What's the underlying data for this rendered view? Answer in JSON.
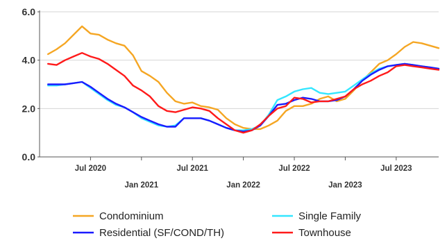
{
  "chart_data": {
    "type": "line",
    "title": "",
    "xlabel": "",
    "ylabel": "",
    "ylim": [
      0,
      6
    ],
    "yticks": [
      "0.0",
      "2.0",
      "4.0",
      "6.0"
    ],
    "x_range": [
      "2020-01",
      "2023-12"
    ],
    "xticks": [
      {
        "date": "2020-07",
        "label": "Jul 2020",
        "row": 1
      },
      {
        "date": "2021-01",
        "label": "Jan 2021",
        "row": 2
      },
      {
        "date": "2021-07",
        "label": "Jul 2021",
        "row": 1
      },
      {
        "date": "2022-01",
        "label": "Jan 2022",
        "row": 2
      },
      {
        "date": "2022-07",
        "label": "Jul 2022",
        "row": 1
      },
      {
        "date": "2023-01",
        "label": "Jan 2023",
        "row": 2
      },
      {
        "date": "2023-07",
        "label": "Jul 2023",
        "row": 1
      }
    ],
    "grid": "horizontal",
    "legend_position": "bottom",
    "x": [
      "2020-02",
      "2020-03",
      "2020-04",
      "2020-05",
      "2020-06",
      "2020-07",
      "2020-08",
      "2020-09",
      "2020-10",
      "2020-11",
      "2020-12",
      "2021-01",
      "2021-02",
      "2021-03",
      "2021-04",
      "2021-05",
      "2021-06",
      "2021-07",
      "2021-08",
      "2021-09",
      "2021-10",
      "2021-11",
      "2021-12",
      "2022-01",
      "2022-02",
      "2022-03",
      "2022-04",
      "2022-05",
      "2022-06",
      "2022-07",
      "2022-08",
      "2022-09",
      "2022-10",
      "2022-11",
      "2022-12",
      "2023-01",
      "2023-02",
      "2023-03",
      "2023-04",
      "2023-05",
      "2023-06",
      "2023-07",
      "2023-08",
      "2023-09",
      "2023-10",
      "2023-11",
      "2023-12"
    ],
    "series": [
      {
        "name": "Condominium",
        "color": "#f5a623",
        "values": [
          4.25,
          4.45,
          4.7,
          5.05,
          5.4,
          5.1,
          5.05,
          4.85,
          4.7,
          4.6,
          4.2,
          3.55,
          3.35,
          3.1,
          2.65,
          2.3,
          2.2,
          2.25,
          2.1,
          2.05,
          1.95,
          1.6,
          1.35,
          1.2,
          1.15,
          1.15,
          1.3,
          1.5,
          1.9,
          2.1,
          2.1,
          2.2,
          2.4,
          2.5,
          2.3,
          2.4,
          2.75,
          3.15,
          3.5,
          3.85,
          4.0,
          4.25,
          4.55,
          4.75,
          4.7,
          4.6,
          4.5
        ]
      },
      {
        "name": "Single Family",
        "color": "#33e6ff",
        "values": [
          2.95,
          2.95,
          3.0,
          3.05,
          3.1,
          2.85,
          2.6,
          2.35,
          2.15,
          2.05,
          1.85,
          1.6,
          1.45,
          1.3,
          1.25,
          1.3,
          1.6,
          1.6,
          1.6,
          1.5,
          1.35,
          1.2,
          1.1,
          1.1,
          1.15,
          1.3,
          1.75,
          2.35,
          2.5,
          2.7,
          2.8,
          2.85,
          2.65,
          2.6,
          2.65,
          2.7,
          2.95,
          3.2,
          3.45,
          3.65,
          3.75,
          3.8,
          3.85,
          3.8,
          3.75,
          3.7,
          3.65
        ]
      },
      {
        "name": "Residential (SF/COND/TH)",
        "color": "#1a1aff",
        "values": [
          3.0,
          3.0,
          3.0,
          3.05,
          3.1,
          2.9,
          2.65,
          2.4,
          2.2,
          2.05,
          1.85,
          1.65,
          1.5,
          1.35,
          1.25,
          1.25,
          1.6,
          1.6,
          1.6,
          1.5,
          1.35,
          1.2,
          1.1,
          1.05,
          1.1,
          1.3,
          1.7,
          2.15,
          2.2,
          2.35,
          2.45,
          2.4,
          2.3,
          2.3,
          2.35,
          2.5,
          2.8,
          3.15,
          3.4,
          3.6,
          3.75,
          3.8,
          3.85,
          3.8,
          3.75,
          3.7,
          3.65
        ]
      },
      {
        "name": "Townhouse",
        "color": "#ff1a1a",
        "values": [
          3.85,
          3.8,
          4.0,
          4.15,
          4.3,
          4.15,
          4.05,
          3.85,
          3.6,
          3.35,
          2.95,
          2.75,
          2.5,
          2.1,
          1.9,
          1.85,
          1.95,
          2.05,
          2.0,
          1.9,
          1.6,
          1.35,
          1.1,
          1.0,
          1.1,
          1.35,
          1.7,
          2.0,
          2.1,
          2.45,
          2.4,
          2.25,
          2.3,
          2.3,
          2.4,
          2.5,
          2.8,
          3.0,
          3.15,
          3.35,
          3.5,
          3.75,
          3.8,
          3.75,
          3.7,
          3.65,
          3.6
        ]
      }
    ],
    "legend": [
      {
        "series": 0,
        "label": "Condominium"
      },
      {
        "series": 1,
        "label": "Single Family"
      },
      {
        "series": 2,
        "label": "Residential (SF/COND/TH)"
      },
      {
        "series": 3,
        "label": "Townhouse"
      }
    ]
  }
}
